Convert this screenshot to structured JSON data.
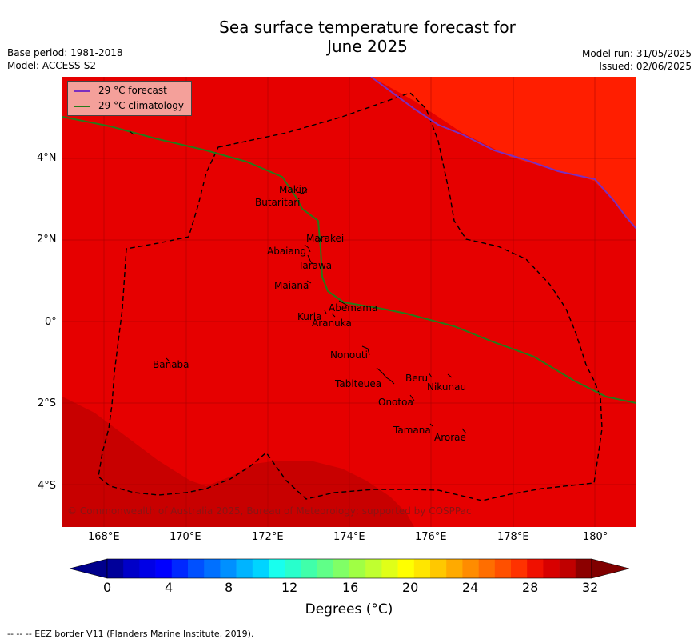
{
  "title": "Sea surface temperature forecast for\nJune 2025",
  "title_line1": "Sea surface temperature forecast for",
  "title_line2": "June 2025",
  "base_period": "Base period: 1981-2018",
  "model": "Model: ACCESS-S2",
  "model_run": "Model run: 31/05/2025",
  "issued": "Issued: 02/06/2025",
  "legend": {
    "forecast": "29 °C  forecast",
    "climatology": "29 °C  climatology",
    "forecast_color": "#7b2fbf",
    "climatology_color": "#267a1a"
  },
  "copyright": "© Commonwealth of Australia 2025, Bureau of Meteorology; supported by COSPPac",
  "y_ticks": [
    "4°N",
    "2°N",
    "0°",
    "2°S",
    "4°S"
  ],
  "x_ticks": [
    "168°E",
    "170°E",
    "172°E",
    "174°E",
    "176°E",
    "178°E",
    "180°"
  ],
  "islands": [
    {
      "name": "Makin"
    },
    {
      "name": "Butaritari"
    },
    {
      "name": "Marakei"
    },
    {
      "name": "Abaiang"
    },
    {
      "name": "Tarawa"
    },
    {
      "name": "Maiana"
    },
    {
      "name": "Abemama"
    },
    {
      "name": "Kuria"
    },
    {
      "name": "Aranuka"
    },
    {
      "name": "Banaba"
    },
    {
      "name": "Nonouti"
    },
    {
      "name": "Tabiteuea"
    },
    {
      "name": "Beru"
    },
    {
      "name": "Nikunau"
    },
    {
      "name": "Onotoa"
    },
    {
      "name": "Tamana"
    },
    {
      "name": "Arorae"
    }
  ],
  "colorbar": {
    "ticks": [
      "0",
      "4",
      "8",
      "12",
      "16",
      "20",
      "24",
      "28",
      "32"
    ],
    "label": "Degrees (°C)",
    "colors": [
      "#00009a",
      "#0000c8",
      "#0000e6",
      "#0000ff",
      "#0028ff",
      "#0050ff",
      "#0070ff",
      "#0090ff",
      "#00b4ff",
      "#00d4ff",
      "#18ffee",
      "#28ffcc",
      "#40ffaa",
      "#60ff88",
      "#80ff66",
      "#a0ff44",
      "#c0ff30",
      "#e0ff18",
      "#ffff00",
      "#ffe600",
      "#ffc800",
      "#ffaa00",
      "#ff8c00",
      "#ff6e00",
      "#ff5000",
      "#ff3200",
      "#f01000",
      "#d80000",
      "#c00000",
      "#8c0000"
    ],
    "under_color": "#00008c",
    "over_color": "#800000"
  },
  "field_colors": {
    "background": "#e60000",
    "warm": "#ff1e00",
    "cool": "#c80000"
  },
  "eez_note": "--  --  -- EEZ border V11 (Flanders Marine Institute, 2019)."
}
